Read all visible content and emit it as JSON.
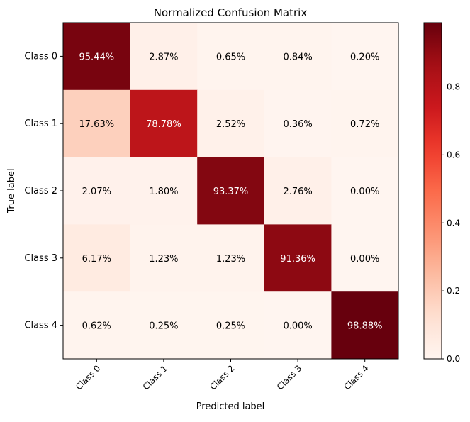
{
  "chart_data": {
    "type": "heatmap",
    "title": "Normalized Confusion Matrix",
    "xlabel": "Predicted label",
    "ylabel": "True label",
    "x_categories": [
      "Class 0",
      "Class 1",
      "Class 2",
      "Class 3",
      "Class 4"
    ],
    "y_categories": [
      "Class 0",
      "Class 1",
      "Class 2",
      "Class 3",
      "Class 4"
    ],
    "values": [
      [
        0.9544,
        0.0287,
        0.0065,
        0.0084,
        0.002
      ],
      [
        0.1763,
        0.7878,
        0.0252,
        0.0036,
        0.0072
      ],
      [
        0.0207,
        0.018,
        0.9337,
        0.0276,
        0.0
      ],
      [
        0.0617,
        0.0123,
        0.0123,
        0.9136,
        0.0
      ],
      [
        0.0062,
        0.0025,
        0.0025,
        0.0,
        0.9888
      ]
    ],
    "cell_labels": [
      [
        "95.44%",
        "2.87%",
        "0.65%",
        "0.84%",
        "0.20%"
      ],
      [
        "17.63%",
        "78.78%",
        "2.52%",
        "0.36%",
        "0.72%"
      ],
      [
        "2.07%",
        "1.80%",
        "93.37%",
        "2.76%",
        "0.00%"
      ],
      [
        "6.17%",
        "1.23%",
        "1.23%",
        "91.36%",
        "0.00%"
      ],
      [
        "0.62%",
        "0.25%",
        "0.25%",
        "0.00%",
        "98.88%"
      ]
    ],
    "colormap": "Reds",
    "color_range": [
      0,
      0.9888
    ],
    "colorbar_ticks": [
      0.0,
      0.2,
      0.4,
      0.6,
      0.8
    ],
    "colorbar_tick_labels": [
      "0.0",
      "0.2",
      "0.4",
      "0.6",
      "0.8"
    ],
    "colors": {
      "low": "#fff5f0",
      "high": "#67000d",
      "text_dark": "#000000",
      "text_light": "#ffffff"
    },
    "grid": false
  }
}
